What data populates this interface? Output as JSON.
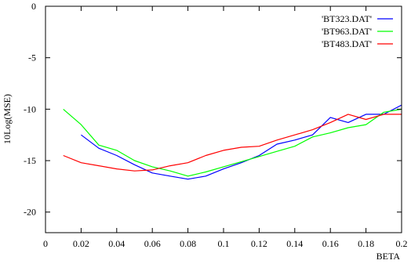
{
  "chart_data": {
    "type": "line",
    "title": "",
    "xlabel": "BETA",
    "ylabel": "10Log(MSE)",
    "xlim": [
      0,
      0.2
    ],
    "ylim": [
      -22,
      0
    ],
    "x_ticks": [
      "0",
      "0.02",
      "0.04",
      "0.06",
      "0.08",
      "0.1",
      "0.12",
      "0.14",
      "0.16",
      "0.18",
      "0.2"
    ],
    "y_ticks": [
      "0",
      "-5",
      "-10",
      "-15",
      "-20"
    ],
    "grid": false,
    "legend_position": "top-right",
    "series": [
      {
        "name": "'BT323.DAT'",
        "color": "#0000ff",
        "x": [
          0.02,
          0.03,
          0.04,
          0.05,
          0.06,
          0.07,
          0.08,
          0.09,
          0.1,
          0.11,
          0.12,
          0.13,
          0.14,
          0.15,
          0.16,
          0.17,
          0.18,
          0.19,
          0.2
        ],
        "y": [
          -12.5,
          -13.8,
          -14.5,
          -15.4,
          -16.2,
          -16.5,
          -16.8,
          -16.5,
          -15.8,
          -15.2,
          -14.5,
          -13.4,
          -13.0,
          -12.5,
          -10.8,
          -11.3,
          -10.5,
          -10.5,
          -9.6
        ]
      },
      {
        "name": "'BT963.DAT'",
        "color": "#00ff00",
        "x": [
          0.01,
          0.02,
          0.03,
          0.04,
          0.05,
          0.06,
          0.07,
          0.08,
          0.09,
          0.1,
          0.11,
          0.12,
          0.13,
          0.14,
          0.15,
          0.16,
          0.17,
          0.18,
          0.19,
          0.2
        ],
        "y": [
          -10.0,
          -11.5,
          -13.5,
          -14.0,
          -15.0,
          -15.6,
          -16.0,
          -16.5,
          -16.1,
          -15.6,
          -15.1,
          -14.6,
          -14.1,
          -13.6,
          -12.7,
          -12.3,
          -11.8,
          -11.5,
          -10.3,
          -10.0
        ]
      },
      {
        "name": "'BT483.DAT'",
        "color": "#ff0000",
        "x": [
          0.01,
          0.02,
          0.03,
          0.04,
          0.05,
          0.06,
          0.07,
          0.08,
          0.09,
          0.1,
          0.11,
          0.12,
          0.13,
          0.14,
          0.15,
          0.16,
          0.17,
          0.18,
          0.19,
          0.2
        ],
        "y": [
          -14.5,
          -15.2,
          -15.5,
          -15.8,
          -16.0,
          -15.9,
          -15.5,
          -15.2,
          -14.5,
          -14.0,
          -13.7,
          -13.6,
          -13.0,
          -12.5,
          -12.0,
          -11.3,
          -10.5,
          -11.0,
          -10.5,
          -10.5
        ]
      }
    ]
  }
}
